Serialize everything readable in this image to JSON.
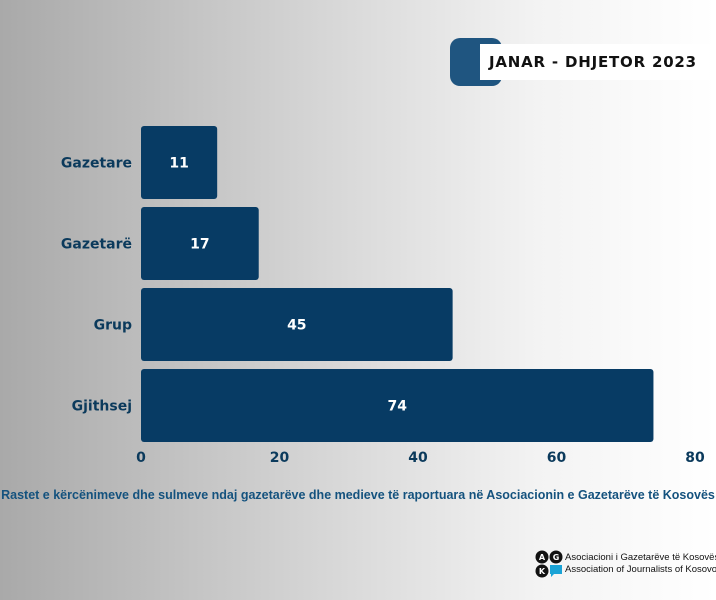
{
  "title": "JANAR - DHJETOR 2023",
  "caption": "Rastet e kërcënimeve dhe sulmeve ndaj gazetarëve dhe medieve të raportuara në Asociacionin e Gazetarëve të Kosovës",
  "logo": {
    "letters": [
      "A",
      "G",
      "K"
    ],
    "line1": "Asociacioni i Gazetarëve të Kosovës",
    "line2": "Association of Journalists of Kosovo"
  },
  "colors": {
    "bar": "#073b64",
    "label": "#0b3a5c",
    "caption": "#14527e",
    "title_accent": "#1f5580",
    "logo_cyan": "#1aa3d6"
  },
  "chart_data": {
    "type": "bar",
    "orientation": "horizontal",
    "categories": [
      "Gazetare",
      "Gazetarë",
      "Grup",
      "Gjithsej"
    ],
    "values": [
      11,
      17,
      45,
      74
    ],
    "data_labels": [
      "11",
      "17",
      "45",
      "74"
    ],
    "xlim": [
      0,
      80
    ],
    "xticks": [
      0,
      20,
      40,
      60,
      80
    ],
    "title": "JANAR - DHJETOR 2023",
    "xlabel": "",
    "ylabel": "",
    "grid": false,
    "legend": "none"
  }
}
